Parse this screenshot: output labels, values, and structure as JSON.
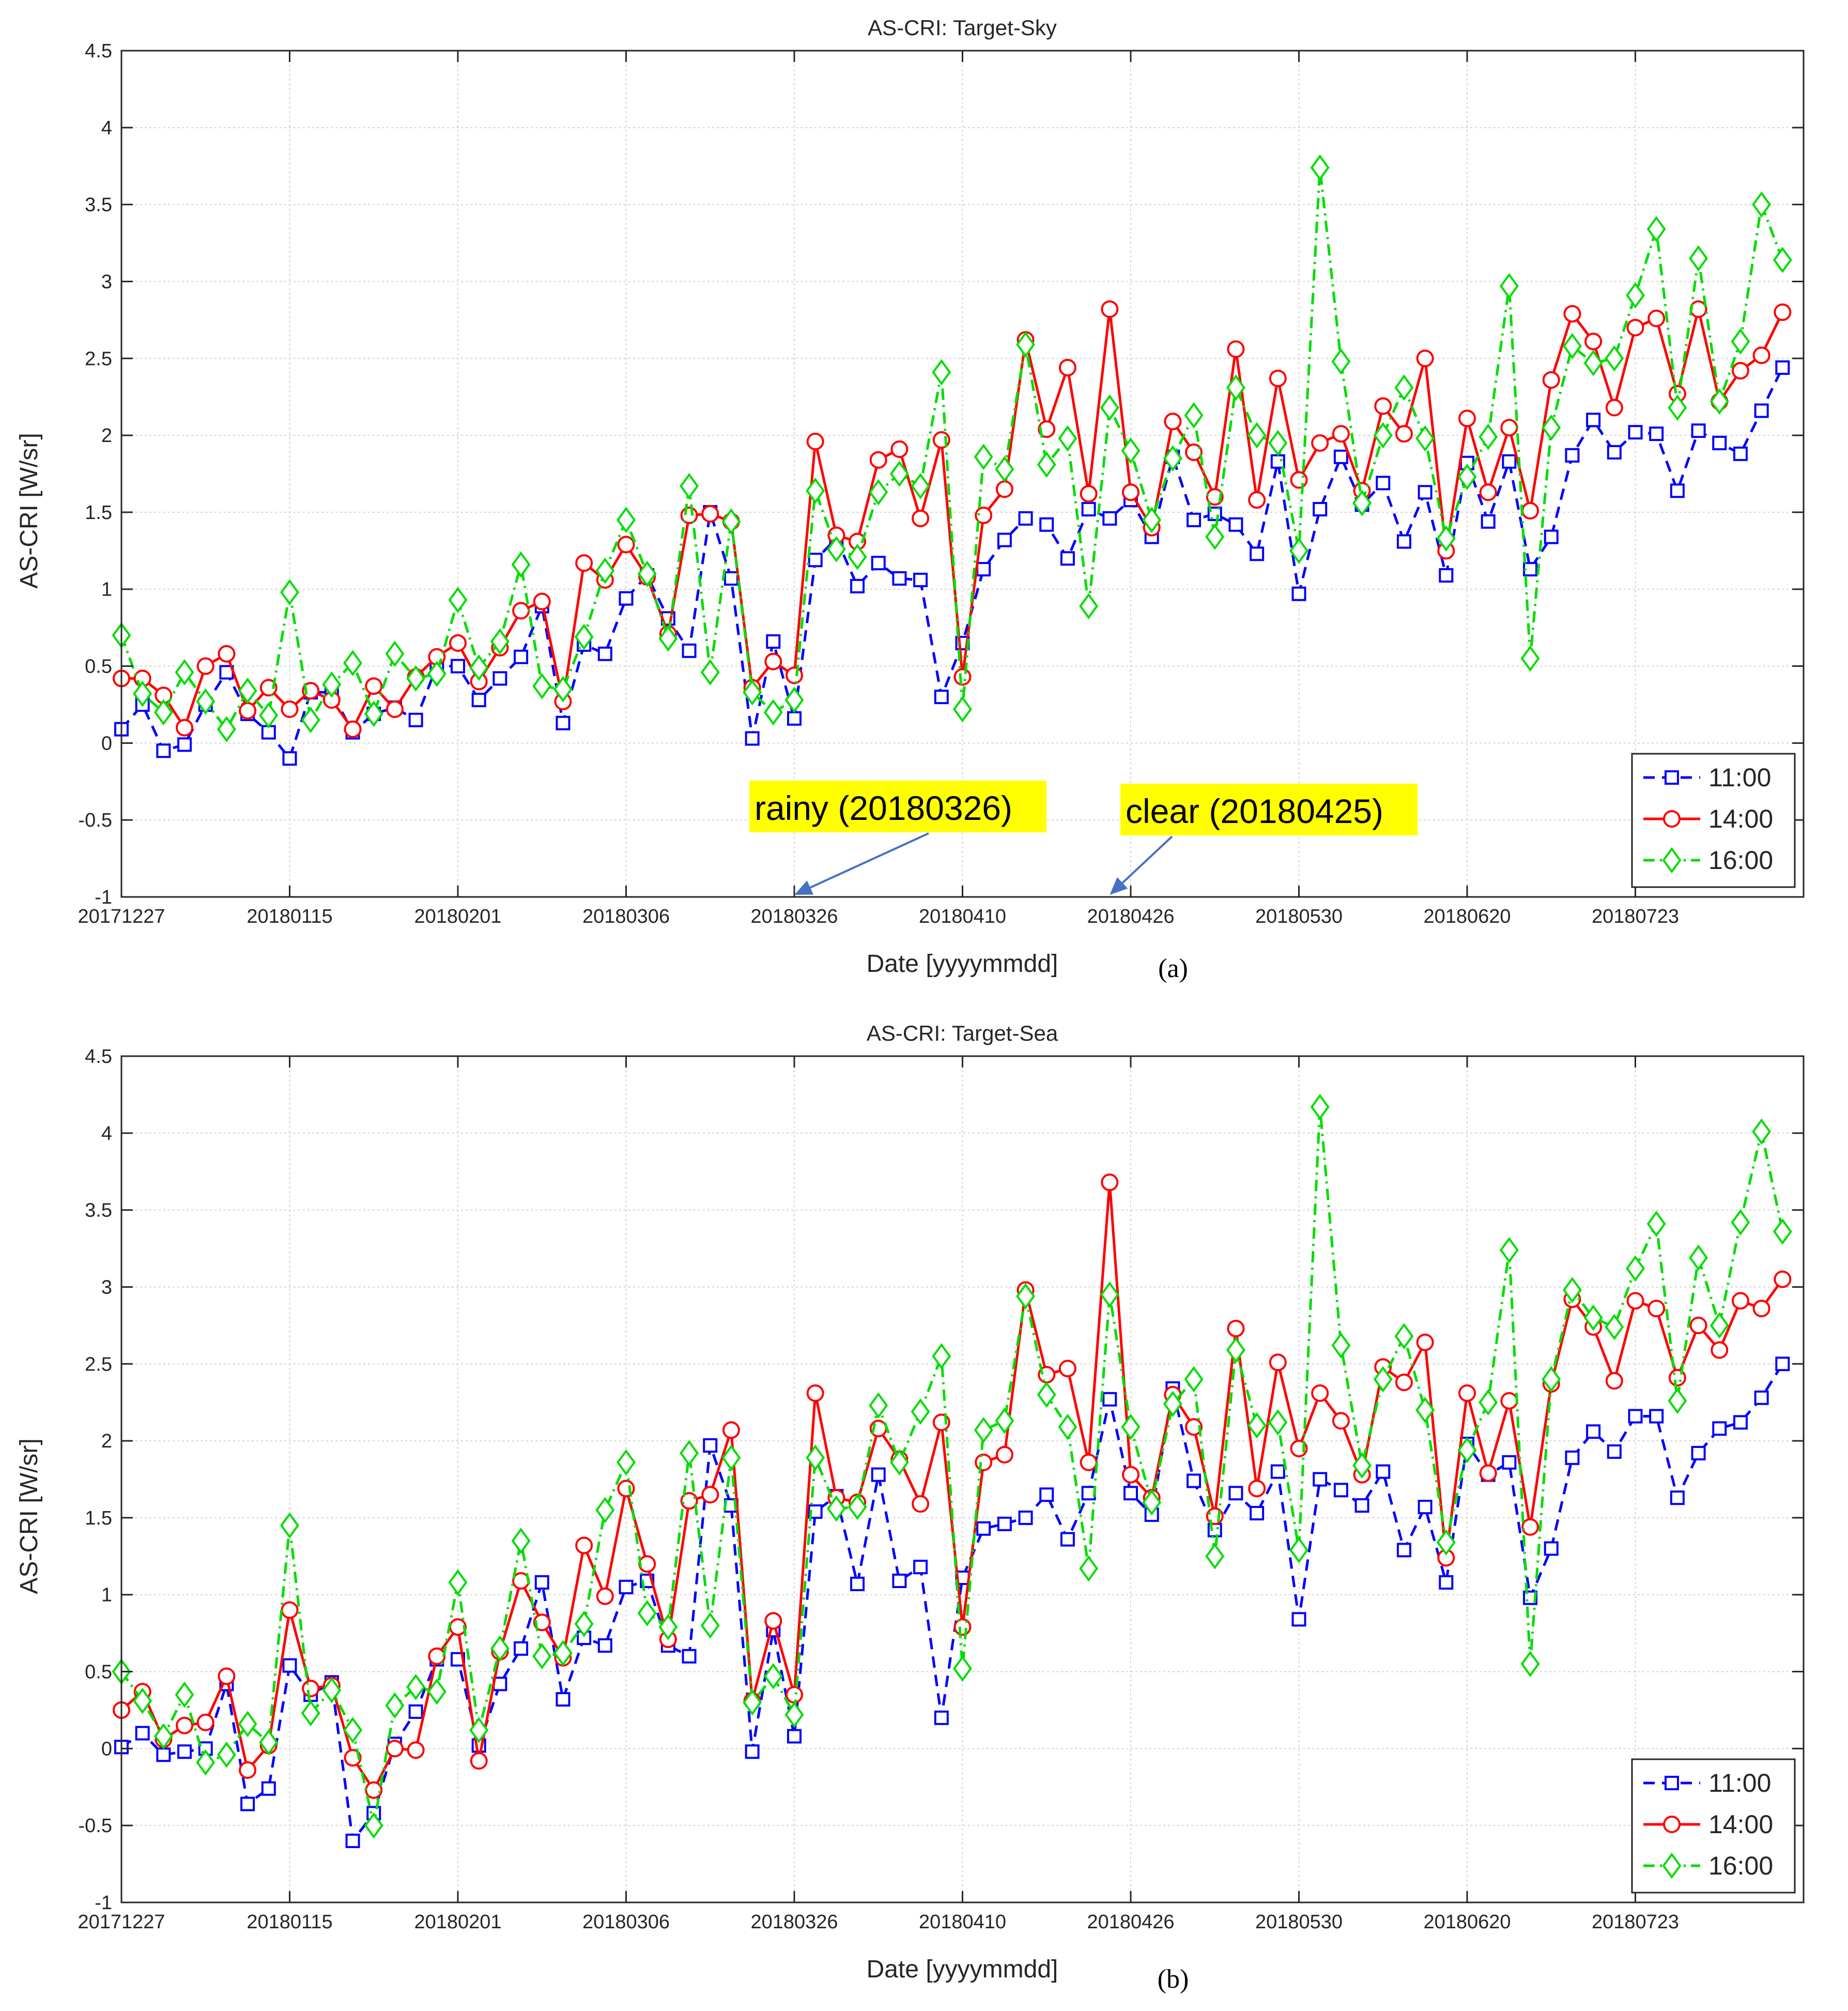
{
  "chart_data": [
    {
      "type": "line",
      "title": "AS-CRI: Target-Sky",
      "xlabel": "Date [yyyymmdd]",
      "ylabel": "AS-CRI [W/sr]",
      "panel_label": "(a)",
      "ylim": [
        -1,
        4.5
      ],
      "yticks": [
        -1,
        -0.5,
        0,
        0.5,
        1,
        1.5,
        2,
        2.5,
        3,
        3.5,
        4,
        4.5
      ],
      "ytick_labels": [
        "-1",
        "-0.5",
        "0",
        "0.5",
        "1",
        "1.5",
        "2",
        "2.5",
        "3",
        "3.5",
        "4",
        "4.5"
      ],
      "xlim": [
        0,
        80
      ],
      "xtick_positions": [
        0,
        8,
        16,
        24,
        32,
        40,
        48,
        56,
        64,
        72
      ],
      "xtick_labels": [
        "20171227",
        "20180115",
        "20180201",
        "20180306",
        "20180326",
        "20180410",
        "20180426",
        "20180530",
        "20180620",
        "20180723"
      ],
      "grid": true,
      "legend_position": "bottom-right",
      "annotations": [
        {
          "text": "rainy (20180326)",
          "arrow_to_x": 32,
          "arrow_to_y": -1
        },
        {
          "text": "clear (20180425)",
          "arrow_to_x": 47,
          "arrow_to_y": -1
        }
      ],
      "series": [
        {
          "name": "11:00",
          "color": "#0000ff",
          "marker": "square",
          "dash": "dashed",
          "values": [
            0.09,
            0.25,
            -0.05,
            -0.01,
            0.25,
            0.46,
            0.19,
            0.07,
            -0.1,
            0.33,
            0.33,
            0.07,
            0.19,
            0.23,
            0.15,
            0.5,
            0.5,
            0.28,
            0.42,
            0.56,
            0.89,
            0.13,
            0.64,
            0.58,
            0.94,
            1.09,
            0.81,
            0.6,
            1.5,
            1.07,
            0.03,
            0.66,
            0.16,
            1.19,
            1.33,
            1.02,
            1.17,
            1.07,
            1.06,
            0.3,
            0.65,
            1.13,
            1.32,
            1.46,
            1.42,
            1.2,
            1.52,
            1.46,
            1.58,
            1.34,
            1.86,
            1.45,
            1.49,
            1.42,
            1.23,
            1.83,
            0.97,
            1.52,
            1.86,
            1.55,
            1.69,
            1.31,
            1.63,
            1.09,
            1.82,
            1.44,
            1.83,
            1.13,
            1.34,
            1.87,
            2.1,
            1.89,
            2.02,
            2.01,
            1.64,
            2.03,
            1.95,
            1.88,
            2.16,
            2.44
          ]
        },
        {
          "name": "14:00",
          "color": "#ff0000",
          "marker": "circle",
          "dash": "solid",
          "values": [
            0.42,
            0.42,
            0.31,
            0.1,
            0.5,
            0.58,
            0.21,
            0.36,
            0.22,
            0.34,
            0.28,
            0.09,
            0.37,
            0.22,
            0.43,
            0.56,
            0.65,
            0.4,
            0.62,
            0.86,
            0.92,
            0.27,
            1.17,
            1.06,
            1.29,
            1.08,
            0.71,
            1.48,
            1.49,
            1.44,
            0.36,
            0.53,
            0.44,
            1.96,
            1.35,
            1.31,
            1.84,
            1.91,
            1.46,
            1.97,
            0.43,
            1.48,
            1.65,
            2.62,
            2.04,
            2.44,
            1.62,
            2.82,
            1.63,
            1.4,
            2.09,
            1.89,
            1.6,
            2.56,
            1.58,
            2.37,
            1.71,
            1.95,
            2.01,
            1.64,
            2.19,
            2.01,
            2.5,
            1.25,
            2.11,
            1.63,
            2.05,
            1.51,
            2.36,
            2.79,
            2.61,
            2.18,
            2.7,
            2.76,
            2.27,
            2.82,
            2.22,
            2.42,
            2.52,
            2.8
          ]
        },
        {
          "name": "16:00",
          "color": "#00dd00",
          "marker": "diamond",
          "dash": "dashdot",
          "values": [
            0.7,
            0.32,
            0.2,
            0.46,
            0.27,
            0.09,
            0.34,
            0.18,
            0.98,
            0.15,
            0.38,
            0.52,
            0.19,
            0.58,
            0.42,
            0.45,
            0.93,
            0.49,
            0.66,
            1.16,
            0.37,
            0.35,
            0.69,
            1.12,
            1.45,
            1.1,
            0.68,
            1.67,
            0.46,
            1.44,
            0.33,
            0.2,
            0.28,
            1.64,
            1.26,
            1.21,
            1.63,
            1.75,
            1.67,
            2.41,
            0.22,
            1.86,
            1.78,
            2.59,
            1.81,
            1.98,
            0.89,
            2.18,
            1.9,
            1.45,
            1.85,
            2.13,
            1.34,
            2.31,
            2.0,
            1.95,
            1.25,
            3.74,
            2.48,
            1.56,
            2.0,
            2.31,
            1.98,
            1.33,
            1.73,
            1.99,
            2.97,
            0.55,
            2.05,
            2.58,
            2.47,
            2.5,
            2.91,
            3.34,
            2.18,
            3.15,
            2.22,
            2.61,
            3.5,
            3.14
          ]
        }
      ]
    },
    {
      "type": "line",
      "title": "AS-CRI: Target-Sea",
      "xlabel": "Date [yyyymmdd]",
      "ylabel": "AS-CRI [W/sr]",
      "panel_label": "(b)",
      "ylim": [
        -1,
        4.5
      ],
      "yticks": [
        -1,
        -0.5,
        0,
        0.5,
        1,
        1.5,
        2,
        2.5,
        3,
        3.5,
        4,
        4.5
      ],
      "ytick_labels": [
        "-1",
        "-0.5",
        "0",
        "0.5",
        "1",
        "1.5",
        "2",
        "2.5",
        "3",
        "3.5",
        "4",
        "4.5"
      ],
      "xlim": [
        0,
        80
      ],
      "xtick_positions": [
        0,
        8,
        16,
        24,
        32,
        40,
        48,
        56,
        64,
        72
      ],
      "xtick_labels": [
        "20171227",
        "20180115",
        "20180201",
        "20180306",
        "20180326",
        "20180410",
        "20180426",
        "20180530",
        "20180620",
        "20180723"
      ],
      "grid": true,
      "legend_position": "bottom-right",
      "series": [
        {
          "name": "11:00",
          "color": "#0000ff",
          "marker": "square",
          "dash": "dashed",
          "values": [
            0.01,
            0.1,
            -0.04,
            -0.02,
            0.0,
            0.42,
            -0.36,
            -0.26,
            0.54,
            0.35,
            0.43,
            -0.6,
            -0.42,
            0.03,
            0.24,
            0.58,
            0.58,
            0.02,
            0.42,
            0.65,
            1.08,
            0.32,
            0.72,
            0.67,
            1.05,
            1.09,
            0.67,
            0.6,
            1.97,
            1.58,
            -0.02,
            0.77,
            0.08,
            1.54,
            1.64,
            1.07,
            1.78,
            1.09,
            1.18,
            0.2,
            1.11,
            1.43,
            1.46,
            1.5,
            1.65,
            1.36,
            1.66,
            2.27,
            1.66,
            1.52,
            2.34,
            1.74,
            1.42,
            1.66,
            1.53,
            1.8,
            0.84,
            1.75,
            1.68,
            1.58,
            1.8,
            1.29,
            1.57,
            1.08,
            1.98,
            1.78,
            1.86,
            0.98,
            1.3,
            1.89,
            2.06,
            1.93,
            2.16,
            2.16,
            1.63,
            1.92,
            2.08,
            2.12,
            2.28,
            2.5
          ]
        },
        {
          "name": "14:00",
          "color": "#ff0000",
          "marker": "circle",
          "dash": "solid",
          "values": [
            0.25,
            0.37,
            0.06,
            0.15,
            0.17,
            0.47,
            -0.14,
            0.02,
            0.9,
            0.39,
            0.41,
            -0.06,
            -0.27,
            0.0,
            -0.01,
            0.6,
            0.79,
            -0.08,
            0.63,
            1.09,
            0.82,
            0.59,
            1.32,
            0.99,
            1.69,
            1.2,
            0.71,
            1.61,
            1.65,
            2.07,
            0.31,
            0.83,
            0.35,
            2.31,
            1.63,
            1.6,
            2.08,
            1.88,
            1.59,
            2.12,
            0.79,
            1.86,
            1.91,
            2.98,
            2.43,
            2.47,
            1.86,
            3.68,
            1.78,
            1.63,
            2.3,
            2.09,
            1.51,
            2.73,
            1.69,
            2.51,
            1.95,
            2.31,
            2.13,
            1.78,
            2.48,
            2.38,
            2.64,
            1.24,
            2.31,
            1.79,
            2.26,
            1.44,
            2.37,
            2.92,
            2.74,
            2.39,
            2.91,
            2.86,
            2.41,
            2.75,
            2.59,
            2.91,
            2.86,
            3.05
          ]
        },
        {
          "name": "16:00",
          "color": "#00dd00",
          "marker": "diamond",
          "dash": "dashdot",
          "values": [
            0.5,
            0.31,
            0.08,
            0.35,
            -0.09,
            -0.04,
            0.16,
            0.04,
            1.45,
            0.23,
            0.38,
            0.12,
            -0.5,
            0.28,
            0.4,
            0.37,
            1.08,
            0.12,
            0.65,
            1.35,
            0.6,
            0.62,
            0.81,
            1.55,
            1.86,
            0.88,
            0.79,
            1.92,
            0.8,
            1.89,
            0.3,
            0.47,
            0.22,
            1.89,
            1.56,
            1.57,
            2.23,
            1.86,
            2.19,
            2.55,
            0.52,
            2.07,
            2.13,
            2.94,
            2.3,
            2.09,
            1.17,
            2.95,
            2.09,
            1.6,
            2.24,
            2.4,
            1.25,
            2.59,
            2.1,
            2.12,
            1.29,
            4.17,
            2.62,
            1.84,
            2.4,
            2.68,
            2.2,
            1.34,
            1.94,
            2.25,
            3.24,
            0.55,
            2.4,
            2.98,
            2.8,
            2.74,
            3.12,
            3.41,
            2.26,
            3.19,
            2.75,
            3.42,
            4.01,
            3.36
          ]
        }
      ]
    }
  ]
}
